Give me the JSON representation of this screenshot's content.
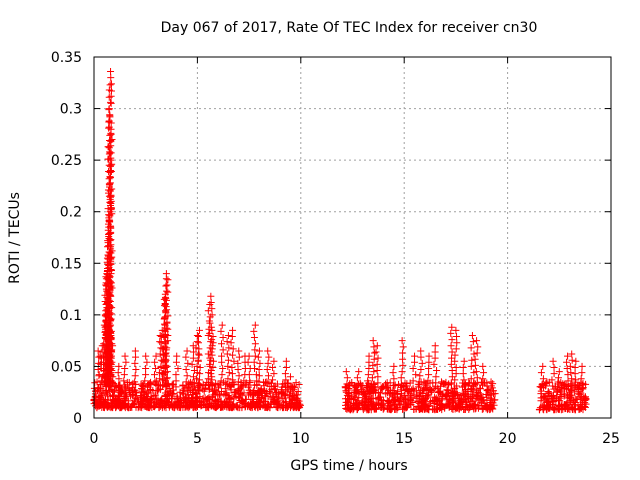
{
  "chart_data": {
    "type": "scatter",
    "title": "Day 067 of 2017, Rate Of TEC Index for receiver cn30",
    "xlabel": "GPS time / hours",
    "ylabel": "ROTI / TECUs",
    "xlim": [
      0,
      25
    ],
    "ylim": [
      0,
      0.35
    ],
    "xticks": [
      0,
      5,
      10,
      15,
      20,
      25
    ],
    "xtick_labels": [
      "0",
      "5",
      "10",
      "15",
      "20",
      "25"
    ],
    "yticks": [
      0,
      0.05,
      0.1,
      0.15,
      0.2,
      0.25,
      0.3,
      0.35
    ],
    "ytick_labels": [
      "0",
      "0.05",
      "0.1",
      "0.15",
      "0.2",
      "0.25",
      "0.3",
      "0.35"
    ],
    "grid": true,
    "marker": "+",
    "color": "#ff0000",
    "series": [
      {
        "points": [
          [
            0.1,
            0.02
          ],
          [
            0.2,
            0.065
          ],
          [
            0.3,
            0.06
          ],
          [
            0.4,
            0.07
          ],
          [
            0.5,
            0.09
          ],
          [
            0.55,
            0.1
          ],
          [
            0.6,
            0.125
          ],
          [
            0.6,
            0.135
          ],
          [
            0.62,
            0.14
          ],
          [
            0.65,
            0.155
          ],
          [
            0.7,
            0.157
          ],
          [
            0.72,
            0.178
          ],
          [
            0.75,
            0.224
          ],
          [
            0.75,
            0.269
          ],
          [
            0.77,
            0.292
          ],
          [
            0.78,
            0.323
          ],
          [
            0.8,
            0.336
          ],
          [
            0.7,
            0.085
          ],
          [
            0.8,
            0.09
          ],
          [
            0.9,
            0.07
          ],
          [
            1.2,
            0.05
          ],
          [
            1.5,
            0.06
          ],
          [
            2.0,
            0.065
          ],
          [
            2.5,
            0.06
          ],
          [
            3.0,
            0.06
          ],
          [
            3.2,
            0.08
          ],
          [
            3.3,
            0.085
          ],
          [
            3.4,
            0.115
          ],
          [
            3.45,
            0.12
          ],
          [
            3.5,
            0.135
          ],
          [
            3.5,
            0.14
          ],
          [
            4.0,
            0.06
          ],
          [
            4.5,
            0.065
          ],
          [
            4.8,
            0.07
          ],
          [
            5.0,
            0.08
          ],
          [
            5.1,
            0.085
          ],
          [
            5.6,
            0.11
          ],
          [
            5.65,
            0.118
          ],
          [
            5.7,
            0.085
          ],
          [
            6.2,
            0.09
          ],
          [
            6.5,
            0.08
          ],
          [
            6.7,
            0.085
          ],
          [
            7.0,
            0.065
          ],
          [
            7.3,
            0.06
          ],
          [
            7.5,
            0.06
          ],
          [
            7.8,
            0.09
          ],
          [
            8.0,
            0.065
          ],
          [
            8.4,
            0.065
          ],
          [
            8.7,
            0.055
          ],
          [
            9.3,
            0.055
          ],
          [
            9.5,
            0.04
          ],
          [
            12.2,
            0.045
          ],
          [
            12.8,
            0.045
          ],
          [
            13.3,
            0.06
          ],
          [
            13.5,
            0.075
          ],
          [
            13.7,
            0.07
          ],
          [
            14.5,
            0.05
          ],
          [
            14.9,
            0.075
          ],
          [
            15.5,
            0.06
          ],
          [
            15.8,
            0.065
          ],
          [
            16.2,
            0.06
          ],
          [
            16.5,
            0.07
          ],
          [
            17.3,
            0.088
          ],
          [
            17.5,
            0.085
          ],
          [
            17.9,
            0.055
          ],
          [
            18.3,
            0.08
          ],
          [
            18.5,
            0.075
          ],
          [
            18.8,
            0.05
          ],
          [
            19.2,
            0.035
          ],
          [
            21.7,
            0.05
          ],
          [
            22.2,
            0.055
          ],
          [
            22.5,
            0.045
          ],
          [
            22.9,
            0.06
          ],
          [
            23.1,
            0.062
          ],
          [
            23.3,
            0.055
          ],
          [
            23.6,
            0.05
          ]
        ]
      }
    ],
    "dense_band_segments": [
      {
        "x_range": [
          0,
          10
        ],
        "y_range": [
          0.01,
          0.035
        ]
      },
      {
        "x_range": [
          12.1,
          19.4
        ],
        "y_range": [
          0.008,
          0.035
        ]
      },
      {
        "x_range": [
          21.5,
          23.8
        ],
        "y_range": [
          0.008,
          0.035
        ]
      }
    ]
  }
}
